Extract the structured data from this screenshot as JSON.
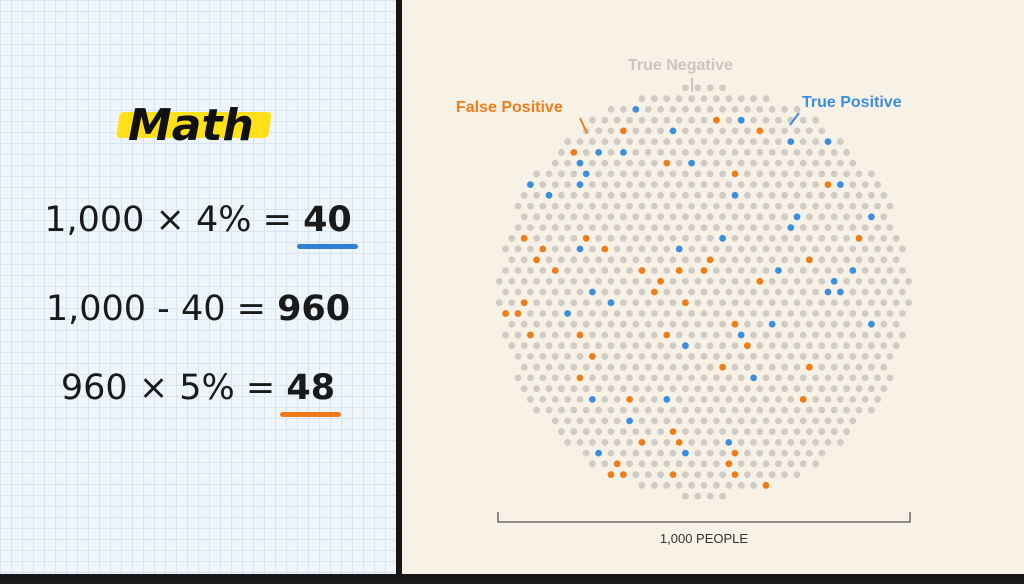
{
  "left_panel": {
    "title": "Math",
    "equations": [
      {
        "lhs": "1,000 × 4% = ",
        "result": "40",
        "underline_color": "#2f7fd6"
      },
      {
        "lhs": "1,000 - 40 = ",
        "result": "960",
        "underline_color": ""
      },
      {
        "lhs": "960 × 5% = ",
        "result": "48",
        "underline_color": "#f07a1a"
      }
    ]
  },
  "right_panel": {
    "labels": {
      "true_negative": "True Negative",
      "false_positive": "False Positive",
      "true_positive": "True Positive"
    },
    "axis_label": "1,000 PEOPLE",
    "colors": {
      "true_negative": "#cfcbc5",
      "false_positive": "#ef7d1a",
      "true_positive": "#3b8fde",
      "true_negative_label": "#c9c5bf"
    },
    "counts": {
      "total": 1000,
      "true_positive": 40,
      "false_positive": 48
    }
  }
}
